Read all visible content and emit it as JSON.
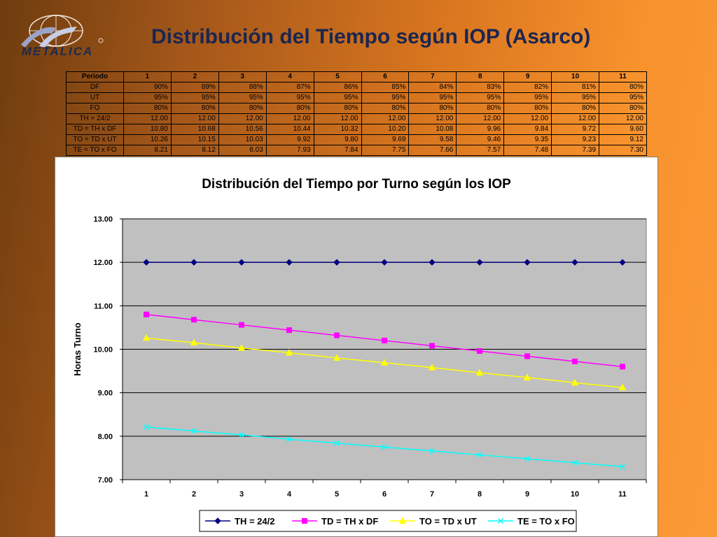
{
  "header": {
    "logo_text": "METALICA",
    "title": "Distribución del Tiempo según IOP (Asarco)"
  },
  "table": {
    "columns": [
      "Periodo",
      "1",
      "2",
      "3",
      "4",
      "5",
      "6",
      "7",
      "8",
      "9",
      "10",
      "11"
    ],
    "rows": [
      {
        "label": "DF",
        "values": [
          "90%",
          "89%",
          "88%",
          "87%",
          "86%",
          "85%",
          "84%",
          "83%",
          "82%",
          "81%",
          "80%"
        ]
      },
      {
        "label": "UT",
        "values": [
          "95%",
          "95%",
          "95%",
          "95%",
          "95%",
          "95%",
          "95%",
          "95%",
          "95%",
          "95%",
          "95%"
        ]
      },
      {
        "label": "FO",
        "values": [
          "80%",
          "80%",
          "80%",
          "80%",
          "80%",
          "80%",
          "80%",
          "80%",
          "80%",
          "80%",
          "80%"
        ]
      },
      {
        "label": "TH = 24/2",
        "values": [
          "12.00",
          "12.00",
          "12.00",
          "12.00",
          "12.00",
          "12.00",
          "12.00",
          "12.00",
          "12.00",
          "12.00",
          "12.00"
        ]
      },
      {
        "label": "TD = TH x DF",
        "values": [
          "10.80",
          "10.68",
          "10.56",
          "10.44",
          "10.32",
          "10.20",
          "10.08",
          "9.96",
          "9.84",
          "9.72",
          "9.60"
        ]
      },
      {
        "label": "TO = TD x UT",
        "values": [
          "10.26",
          "10.15",
          "10.03",
          "9.92",
          "9.80",
          "9.69",
          "9.58",
          "9.46",
          "9.35",
          "9.23",
          "9.12"
        ]
      },
      {
        "label": "TE = TO x FO",
        "values": [
          "8.21",
          "8.12",
          "8.03",
          "7.93",
          "7.84",
          "7.75",
          "7.66",
          "7.57",
          "7.48",
          "7.39",
          "7.30"
        ]
      }
    ]
  },
  "chart_data": {
    "type": "line",
    "title": "Distribución del Tiempo por Turno según los IOP",
    "xlabel": "",
    "ylabel": "Horas Turno",
    "x": [
      "1",
      "2",
      "3",
      "4",
      "5",
      "6",
      "7",
      "8",
      "9",
      "10",
      "11"
    ],
    "ylim": [
      7,
      13
    ],
    "yticks": [
      "7.00",
      "8.00",
      "9.00",
      "10.00",
      "11.00",
      "12.00",
      "13.00"
    ],
    "grid": true,
    "plot_background": "#c0c0c0",
    "legend_position": "bottom",
    "series": [
      {
        "name": "TH = 24/2",
        "color": "#000080",
        "marker": "diamond",
        "values": [
          12.0,
          12.0,
          12.0,
          12.0,
          12.0,
          12.0,
          12.0,
          12.0,
          12.0,
          12.0,
          12.0
        ]
      },
      {
        "name": "TD = TH x DF",
        "color": "#ff00ff",
        "marker": "square",
        "values": [
          10.8,
          10.68,
          10.56,
          10.44,
          10.32,
          10.2,
          10.08,
          9.96,
          9.84,
          9.72,
          9.6
        ]
      },
      {
        "name": "TO = TD x UT",
        "color": "#ffff00",
        "marker": "triangle",
        "values": [
          10.26,
          10.15,
          10.03,
          9.92,
          9.8,
          9.69,
          9.58,
          9.46,
          9.35,
          9.23,
          9.12
        ]
      },
      {
        "name": "TE = TO x FO",
        "color": "#00ffff",
        "marker": "x",
        "values": [
          8.21,
          8.12,
          8.03,
          7.93,
          7.84,
          7.75,
          7.66,
          7.57,
          7.48,
          7.39,
          7.3
        ]
      }
    ]
  }
}
